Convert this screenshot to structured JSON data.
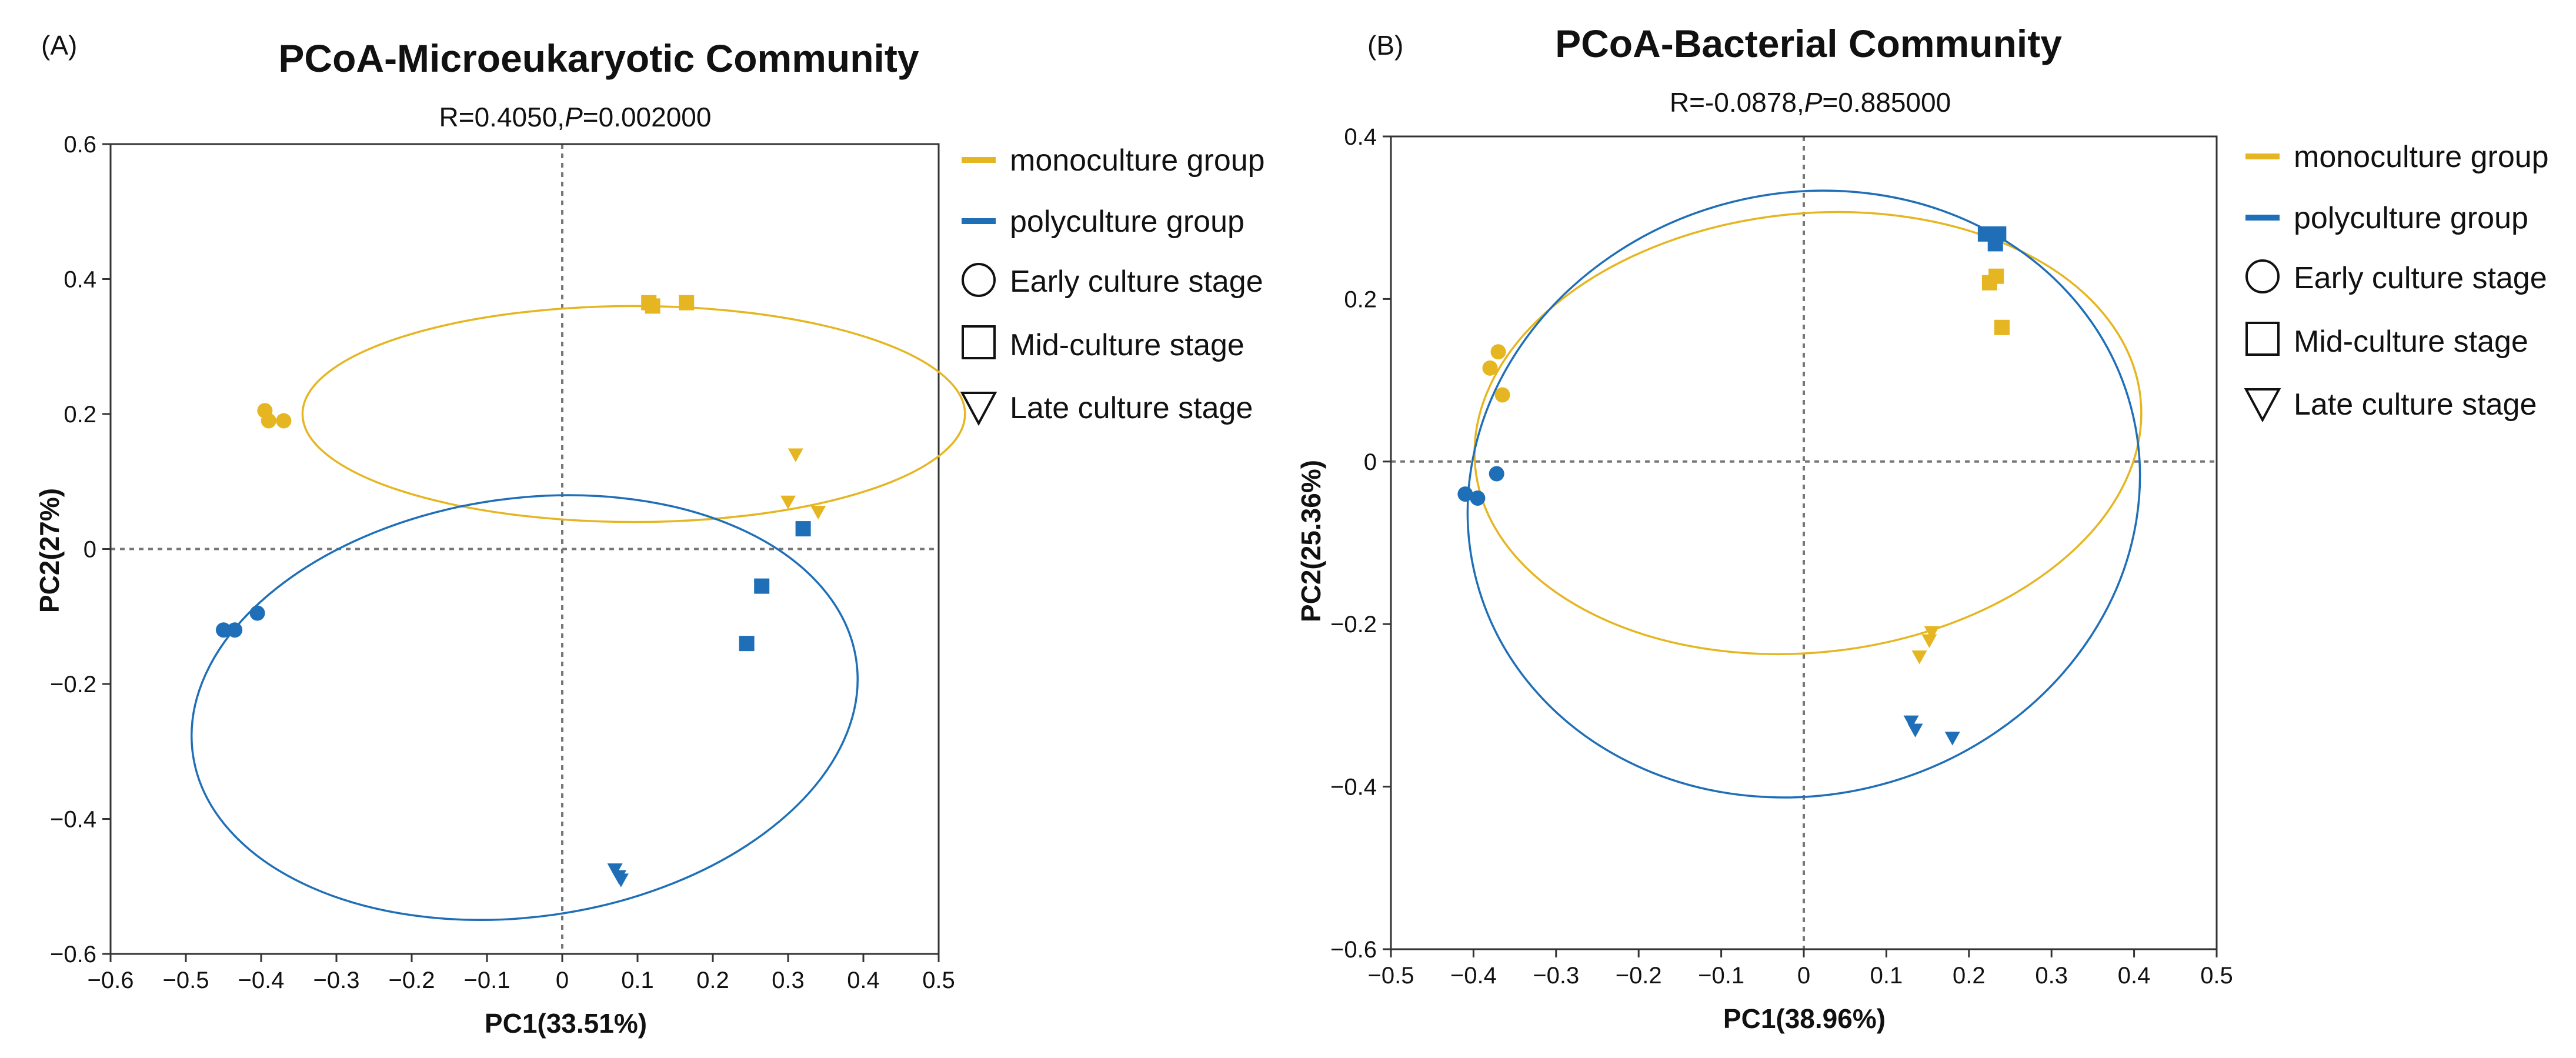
{
  "colors": {
    "mono": "#E5B622",
    "poly": "#1F6FB8"
  },
  "legend": {
    "mono": "monoculture group",
    "poly": "polyculture group",
    "early": "Early culture stage",
    "mid": "Mid-culture stage",
    "late": "Late culture stage"
  },
  "chart_data": [
    {
      "type": "scatter",
      "panel": "(A)",
      "title": "PCoA-Microeukaryotic Community",
      "stat_R": "R=0.4050,",
      "stat_P_label": "P",
      "stat_P_value": "=0.002000",
      "xlabel": "PC1(33.51%)",
      "ylabel": "PC2(27%)",
      "xlim": [
        -0.6,
        0.5
      ],
      "ylim": [
        -0.6,
        0.6
      ],
      "xticks": [
        -0.6,
        -0.5,
        -0.4,
        -0.3,
        -0.2,
        -0.1,
        0,
        0.1,
        0.2,
        0.3,
        0.4,
        0.5
      ],
      "yticks": [
        -0.6,
        -0.4,
        -0.2,
        0,
        0.2,
        0.4,
        0.6
      ],
      "xtick_labels": [
        "−0.6",
        "−0.5",
        "−0.4",
        "−0.3",
        "−0.2",
        "−0.1",
        "0",
        "0.1",
        "0.2",
        "0.3",
        "0.4",
        "0.5"
      ],
      "ytick_labels": [
        "−0.6",
        "−0.4",
        "−0.2",
        "0",
        "0.2",
        "0.4",
        "0.6"
      ],
      "series": [
        {
          "name": "monoculture group",
          "color_key": "mono",
          "points": [
            {
              "x": -0.395,
              "y": 0.205,
              "stage": "early"
            },
            {
              "x": -0.39,
              "y": 0.19,
              "stage": "early"
            },
            {
              "x": -0.37,
              "y": 0.19,
              "stage": "early"
            },
            {
              "x": 0.115,
              "y": 0.365,
              "stage": "mid"
            },
            {
              "x": 0.12,
              "y": 0.36,
              "stage": "mid"
            },
            {
              "x": 0.165,
              "y": 0.365,
              "stage": "mid"
            },
            {
              "x": 0.31,
              "y": 0.14,
              "stage": "late"
            },
            {
              "x": 0.3,
              "y": 0.07,
              "stage": "late"
            },
            {
              "x": 0.34,
              "y": 0.055,
              "stage": "late"
            }
          ]
        },
        {
          "name": "polyculture group",
          "color_key": "poly",
          "points": [
            {
              "x": -0.45,
              "y": -0.12,
              "stage": "early"
            },
            {
              "x": -0.435,
              "y": -0.12,
              "stage": "early"
            },
            {
              "x": -0.405,
              "y": -0.095,
              "stage": "early"
            },
            {
              "x": 0.32,
              "y": 0.03,
              "stage": "mid"
            },
            {
              "x": 0.265,
              "y": -0.055,
              "stage": "mid"
            },
            {
              "x": 0.245,
              "y": -0.14,
              "stage": "mid"
            },
            {
              "x": 0.07,
              "y": -0.475,
              "stage": "late"
            },
            {
              "x": 0.075,
              "y": -0.485,
              "stage": "late"
            },
            {
              "x": 0.078,
              "y": -0.49,
              "stage": "late"
            }
          ]
        }
      ],
      "ellipses": [
        {
          "color_key": "mono",
          "cx": 0.095,
          "cy": 0.2,
          "rx": 0.44,
          "ry": 0.16,
          "angle_deg": 0
        },
        {
          "color_key": "poly",
          "cx": -0.05,
          "cy": -0.235,
          "rx": 0.445,
          "ry": 0.31,
          "angle_deg": -8
        }
      ]
    },
    {
      "type": "scatter",
      "panel": "(B)",
      "title": "PCoA-Bacterial Community",
      "stat_R": "R=-0.0878,",
      "stat_P_label": "P",
      "stat_P_value": "=0.885000",
      "xlabel": "PC1(38.96%)",
      "ylabel": "PC2(25.36%)",
      "xlim": [
        -0.5,
        0.5
      ],
      "ylim": [
        -0.6,
        0.4
      ],
      "xticks": [
        -0.5,
        -0.4,
        -0.3,
        -0.2,
        -0.1,
        0,
        0.1,
        0.2,
        0.3,
        0.4,
        0.5
      ],
      "yticks": [
        -0.6,
        -0.4,
        -0.2,
        0,
        0.2,
        0.4
      ],
      "xtick_labels": [
        "−0.5",
        "−0.4",
        "−0.3",
        "−0.2",
        "−0.1",
        "0",
        "0.1",
        "0.2",
        "0.3",
        "0.4",
        "0.5"
      ],
      "ytick_labels": [
        "−0.6",
        "−0.4",
        "−0.2",
        "0",
        "0.2",
        "0.4"
      ],
      "series": [
        {
          "name": "monoculture group",
          "color_key": "mono",
          "points": [
            {
              "x": -0.37,
              "y": 0.135,
              "stage": "early"
            },
            {
              "x": -0.38,
              "y": 0.115,
              "stage": "early"
            },
            {
              "x": -0.365,
              "y": 0.082,
              "stage": "early"
            },
            {
              "x": 0.225,
              "y": 0.22,
              "stage": "mid"
            },
            {
              "x": 0.233,
              "y": 0.228,
              "stage": "mid"
            },
            {
              "x": 0.24,
              "y": 0.165,
              "stage": "mid"
            },
            {
              "x": 0.155,
              "y": -0.21,
              "stage": "late"
            },
            {
              "x": 0.152,
              "y": -0.22,
              "stage": "late"
            },
            {
              "x": 0.14,
              "y": -0.24,
              "stage": "late"
            }
          ]
        },
        {
          "name": "polyculture group",
          "color_key": "poly",
          "points": [
            {
              "x": -0.41,
              "y": -0.04,
              "stage": "early"
            },
            {
              "x": -0.395,
              "y": -0.045,
              "stage": "early"
            },
            {
              "x": -0.372,
              "y": -0.015,
              "stage": "early"
            },
            {
              "x": 0.22,
              "y": 0.28,
              "stage": "mid"
            },
            {
              "x": 0.236,
              "y": 0.28,
              "stage": "mid"
            },
            {
              "x": 0.232,
              "y": 0.268,
              "stage": "mid"
            },
            {
              "x": 0.13,
              "y": -0.32,
              "stage": "late"
            },
            {
              "x": 0.135,
              "y": -0.33,
              "stage": "late"
            },
            {
              "x": 0.18,
              "y": -0.34,
              "stage": "late"
            }
          ]
        }
      ],
      "ellipses": [
        {
          "color_key": "mono",
          "cx": 0.005,
          "cy": 0.035,
          "rx": 0.405,
          "ry": 0.27,
          "angle_deg": -6
        },
        {
          "color_key": "poly",
          "cx": 0.0,
          "cy": -0.04,
          "rx": 0.41,
          "ry": 0.37,
          "angle_deg": -15
        }
      ]
    }
  ]
}
